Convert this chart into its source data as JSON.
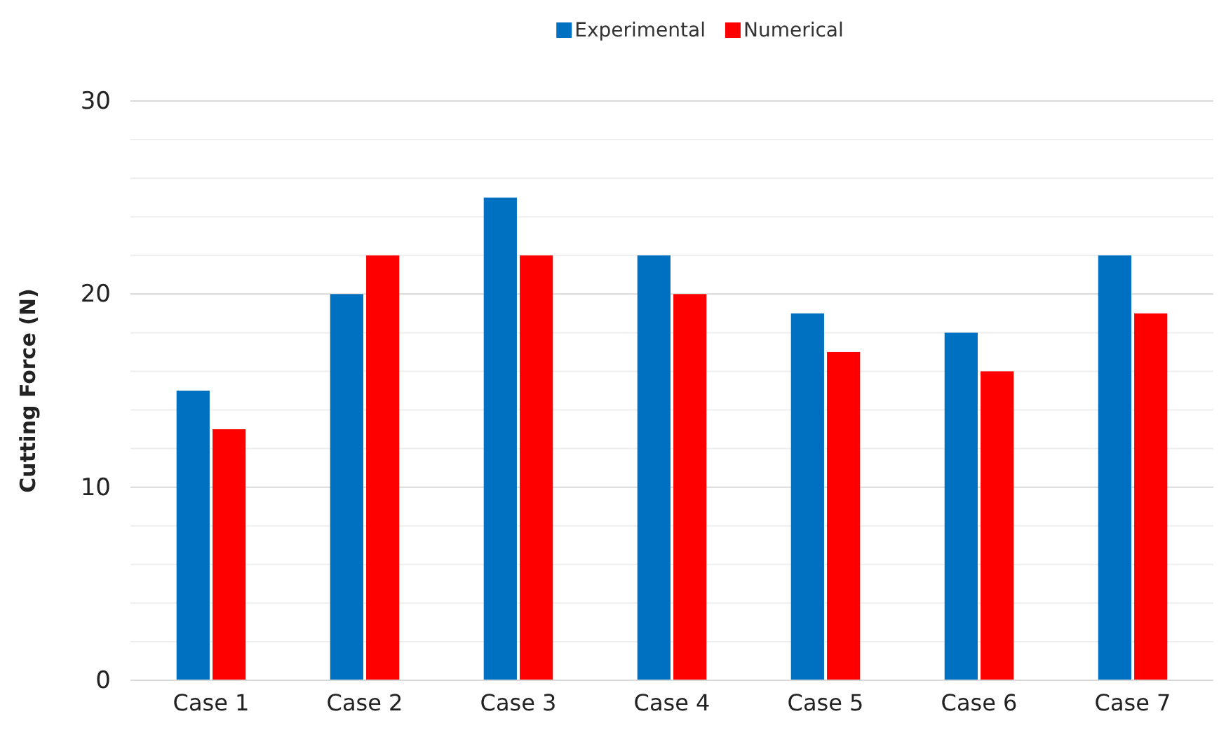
{
  "chart_data": {
    "type": "bar",
    "ylabel": "Cutting Force (N)",
    "categories": [
      "Case 1",
      "Case 2",
      "Case 3",
      "Case 4",
      "Case 5",
      "Case 6",
      "Case 7"
    ],
    "series": [
      {
        "name": "Experimental",
        "color": "#0070c0",
        "values": [
          15,
          20,
          25,
          22,
          19,
          18,
          22
        ]
      },
      {
        "name": "Numerical",
        "color": "#ff0000",
        "values": [
          13,
          22,
          22,
          20,
          17,
          16,
          19
        ]
      }
    ],
    "ylim": [
      0,
      30
    ],
    "yticks": [
      0,
      {
        "value": 2,
        "label": null
      },
      {
        "value": 4,
        "label": null
      },
      {
        "value": 6,
        "label": null
      },
      {
        "value": 8,
        "label": null
      },
      10,
      {
        "value": 12,
        "label": null
      },
      {
        "value": 14,
        "label": null
      },
      {
        "value": 16,
        "label": null
      },
      {
        "value": 18,
        "label": null
      },
      20,
      {
        "value": 22,
        "label": null
      },
      {
        "value": 24,
        "label": null
      },
      {
        "value": 26,
        "label": null
      },
      {
        "value": 28,
        "label": null
      },
      30
    ],
    "grid": "y",
    "legend": "top"
  }
}
